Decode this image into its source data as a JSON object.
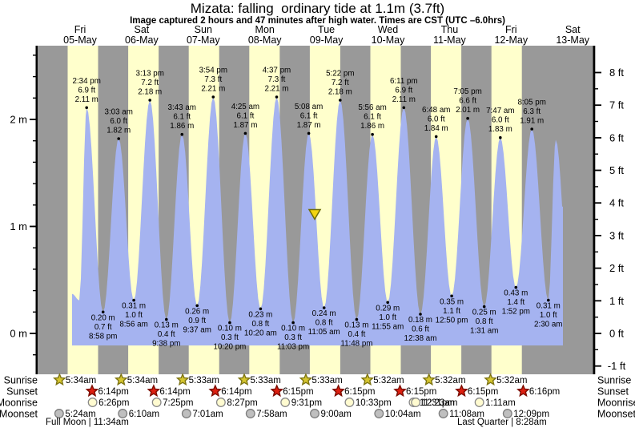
{
  "title": "Mizata: falling  ordinary tide at 1.1m (3.7ft)",
  "subtitle": "Image captured 2 hours and 47 minutes after high water. Times are CST (UTC –6.0hrs)",
  "colors": {
    "band_day": "#ffffcc",
    "band_night": "#999999",
    "tide_fill": "#a5b3f0",
    "day_label_red": "#e63232",
    "marker_fill": "#f2d411",
    "marker_stroke": "#6f6d07",
    "sunrise_star_fill": "#d6c62f",
    "sunrise_star_stroke": "#7d7413",
    "sunset_star_fill": "#dd1f10",
    "sunset_star_stroke": "#7a0d00",
    "moonrise_fill": "#fffbd0",
    "moonrise_stroke": "#8a8a8a",
    "moonset_fill": "#bfbfbf",
    "moonset_stroke": "#7d7d7d"
  },
  "days": [
    {
      "dow": "Fri",
      "date": "05-May"
    },
    {
      "dow": "Sat",
      "date": "06-May"
    },
    {
      "dow": "Sun",
      "date": "07-May"
    },
    {
      "dow": "Mon",
      "date": "08-May"
    },
    {
      "dow": "Tue",
      "date": "09-May"
    },
    {
      "dow": "Wed",
      "date": "10-May"
    },
    {
      "dow": "Thu",
      "date": "11-May"
    },
    {
      "dow": "Fri",
      "date": "12-May"
    },
    {
      "dow": "Sat",
      "date": "13-May"
    }
  ],
  "chart_data": {
    "type": "area",
    "title": "Mizata tide heights",
    "y_axis_left": {
      "unit": "m",
      "tick_labels": [
        "0 m",
        "1 m",
        "2 m"
      ],
      "tick_values_m": [
        0,
        1,
        2
      ],
      "minor_step_m": 0.2
    },
    "y_axis_right": {
      "unit": "ft",
      "tick_labels": [
        "-1 ft",
        "0 ft",
        "1 ft",
        "2 ft",
        "3 ft",
        "4 ft",
        "5 ft",
        "6 ft",
        "7 ft",
        "8 ft"
      ],
      "tick_values_ft": [
        -1,
        0,
        1,
        2,
        3,
        4,
        5,
        6,
        7,
        8
      ],
      "minor_step_ft": 0.5
    },
    "high_tides": [
      {
        "day_index": 0,
        "time": "2:34 pm",
        "ft": 6.9,
        "m": 2.11
      },
      {
        "day_index": 1,
        "time": "3:03 am",
        "ft": 6.0,
        "m": 1.82
      },
      {
        "day_index": 1,
        "time": "3:13 pm",
        "ft": 7.2,
        "m": 2.18
      },
      {
        "day_index": 2,
        "time": "3:43 am",
        "ft": 6.1,
        "m": 1.86
      },
      {
        "day_index": 2,
        "time": "3:54 pm",
        "ft": 7.3,
        "m": 2.21
      },
      {
        "day_index": 3,
        "time": "4:25 am",
        "ft": 6.1,
        "m": 1.87
      },
      {
        "day_index": 3,
        "time": "4:37 pm",
        "ft": 7.3,
        "m": 2.21
      },
      {
        "day_index": 4,
        "time": "5:08 am",
        "ft": 6.1,
        "m": 1.87
      },
      {
        "day_index": 4,
        "time": "5:22 pm",
        "ft": 7.2,
        "m": 2.18
      },
      {
        "day_index": 5,
        "time": "5:56 am",
        "ft": 6.1,
        "m": 1.86
      },
      {
        "day_index": 5,
        "time": "6:11 pm",
        "ft": 6.9,
        "m": 2.11
      },
      {
        "day_index": 6,
        "time": "6:48 am",
        "ft": 6.0,
        "m": 1.84
      },
      {
        "day_index": 6,
        "time": "7:05 pm",
        "ft": 6.6,
        "m": 2.01
      },
      {
        "day_index": 7,
        "time": "7:47 am",
        "ft": 6.0,
        "m": 1.83
      },
      {
        "day_index": 7,
        "time": "8:05 pm",
        "ft": 6.3,
        "m": 1.91
      }
    ],
    "low_tides": [
      {
        "day_index": 0,
        "time": "8:58 pm",
        "ft": 0.7,
        "m": 0.2
      },
      {
        "day_index": 1,
        "time": "8:56 am",
        "ft": 1.0,
        "m": 0.31
      },
      {
        "day_index": 1,
        "time": "9:38 pm",
        "ft": 0.4,
        "m": 0.13
      },
      {
        "day_index": 2,
        "time": "9:37 am",
        "ft": 0.9,
        "m": 0.26
      },
      {
        "day_index": 2,
        "time": "10:20 pm",
        "ft": 0.3,
        "m": 0.1
      },
      {
        "day_index": 3,
        "time": "10:20 am",
        "ft": 0.8,
        "m": 0.23
      },
      {
        "day_index": 3,
        "time": "11:03 pm",
        "ft": 0.3,
        "m": 0.1
      },
      {
        "day_index": 4,
        "time": "11:05 am",
        "ft": 0.8,
        "m": 0.24
      },
      {
        "day_index": 4,
        "time": "11:48 pm",
        "ft": 0.4,
        "m": 0.13
      },
      {
        "day_index": 5,
        "time": "11:55 am",
        "ft": 1.0,
        "m": 0.29
      },
      {
        "day_index": 6,
        "time": "12:38 am",
        "ft": 0.6,
        "m": 0.18
      },
      {
        "day_index": 6,
        "time": "12:50 pm",
        "ft": 1.1,
        "m": 0.35
      },
      {
        "day_index": 7,
        "time": "1:31 am",
        "ft": 0.8,
        "m": 0.25
      },
      {
        "day_index": 7,
        "time": "1:52 pm",
        "ft": 1.4,
        "m": 0.43
      },
      {
        "day_index": 8,
        "time": "2:30 am",
        "ft": 1.0,
        "m": 0.31
      }
    ],
    "unannotated_edge_high_m": 1.81,
    "current_marker": {
      "state": "falling",
      "height_m": 1.1
    }
  },
  "astro": {
    "rows": [
      {
        "label": "Sunrise",
        "icon": "sunrise-star",
        "times": [
          "5:34am",
          "5:34am",
          "5:33am",
          "5:33am",
          "5:33am",
          "5:32am",
          "5:32am",
          "5:32am"
        ]
      },
      {
        "label": "Sunset",
        "icon": "sunset-star",
        "times": [
          "6:14pm",
          "6:14pm",
          "6:14pm",
          "6:15pm",
          "6:15pm",
          "6:15pm",
          "6:15pm",
          "6:16pm"
        ]
      },
      {
        "label": "Moonrise",
        "icon": "moonrise-circle",
        "times": [
          "6:26pm",
          "7:25pm",
          "8:27pm",
          "9:31pm",
          "10:33pm",
          "11:31pm",
          "12:23am",
          "1:11am"
        ]
      },
      {
        "label": "Moonset",
        "icon": "moonset-circle",
        "times": [
          "5:24am",
          "6:10am",
          "7:01am",
          "7:58am",
          "9:00am",
          "10:04am",
          "11:08am",
          "12:09pm"
        ]
      }
    ],
    "notes": [
      {
        "text": "Full Moon | 11:34am"
      },
      {
        "text": "Last Quarter | 8:28am"
      }
    ]
  }
}
